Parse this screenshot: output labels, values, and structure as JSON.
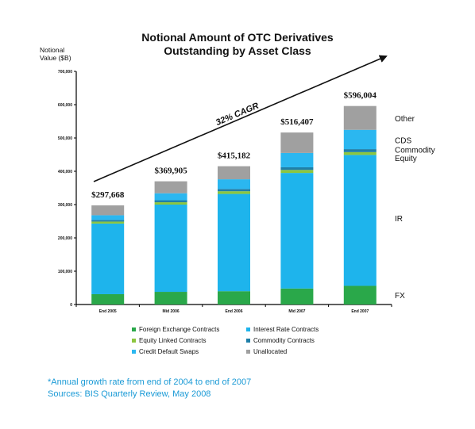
{
  "chart_data": {
    "type": "stacked-bar",
    "title_lines": [
      "Notional Amount of OTC Derivatives",
      "Outstanding by Asset Class"
    ],
    "ylabel_lines": [
      "Notional",
      "Value ($B)"
    ],
    "ylim": [
      0,
      700000
    ],
    "yticks": [
      0,
      100000,
      200000,
      300000,
      400000,
      500000,
      600000,
      700000
    ],
    "ytick_labels": [
      "0",
      "100,000",
      "200,000",
      "300,000",
      "400,000",
      "500,000",
      "600,000",
      "700,000"
    ],
    "categories": [
      "End 2005",
      "Mid 2006",
      "End 2006",
      "Mid 2007",
      "End 2007"
    ],
    "totals": [
      "$297,668",
      "$369,905",
      "$415,182",
      "$516,407",
      "$596,004"
    ],
    "series": [
      {
        "name": "Foreign Exchange Contracts",
        "key": "FX",
        "color": "#2aa84a",
        "values": [
          31000,
          38000,
          40000,
          48000,
          56000
        ]
      },
      {
        "name": "Interest Rate Contracts",
        "key": "IR",
        "color": "#1eb4ec",
        "values": [
          212000,
          262000,
          292000,
          347000,
          393000
        ]
      },
      {
        "name": "Equity Linked Contracts",
        "key": "Equity",
        "color": "#8cc63f",
        "values": [
          6000,
          7000,
          8000,
          9000,
          8500
        ]
      },
      {
        "name": "Commodity Contracts",
        "key": "Commodity",
        "color": "#1f7fa8",
        "values": [
          5000,
          6000,
          7000,
          8000,
          9000
        ]
      },
      {
        "name": "Credit Default Swaps",
        "key": "CDS",
        "color": "#2bb7f0",
        "values": [
          14000,
          21000,
          29000,
          43000,
          58000
        ]
      },
      {
        "name": "Unallocated",
        "key": "Other",
        "color": "#a0a0a0",
        "values": [
          29668,
          35905,
          39182,
          61407,
          71504
        ]
      }
    ],
    "right_labels": [
      {
        "text": "Other",
        "value": 560000
      },
      {
        "text": "CDS",
        "value": 494000
      },
      {
        "text": "Commodity",
        "value": 466000
      },
      {
        "text": "Equity",
        "value": 440000
      },
      {
        "text": "IR",
        "value": 260000
      },
      {
        "text": "FX",
        "value": 28000
      }
    ],
    "annotation": "32% CAGR",
    "legend_position": "bottom",
    "grid": false
  },
  "footnote": {
    "line1": "*Annual growth rate from end of 2004 to end of 2007",
    "line2": "Sources: BIS Quarterly Review, May 2008"
  }
}
